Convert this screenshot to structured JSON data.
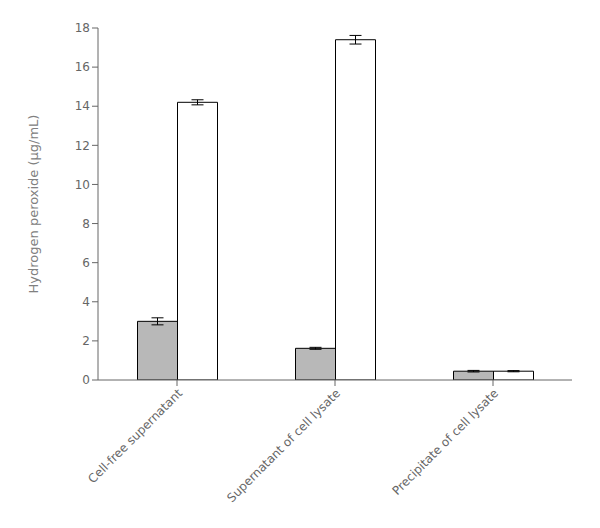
{
  "chart_data": {
    "type": "bar",
    "categories": [
      "Cell-free supernatant",
      "Supernatant of cell lysate",
      "Precipitate of cell lysate"
    ],
    "series": [
      {
        "color": "#b8b8b8",
        "values": [
          3.0,
          1.62,
          0.45
        ],
        "errors": [
          0.18,
          0.05,
          0.04
        ]
      },
      {
        "color": "#ffffff",
        "values": [
          14.2,
          17.4,
          0.45
        ],
        "errors": [
          0.13,
          0.22,
          0.03
        ]
      }
    ],
    "ylabel": "Hydrogen peroxide (μg/mL)",
    "ylim": [
      0,
      18
    ],
    "yticks": [
      0,
      2,
      4,
      6,
      8,
      10,
      12,
      14,
      16,
      18
    ],
    "grid": false
  }
}
